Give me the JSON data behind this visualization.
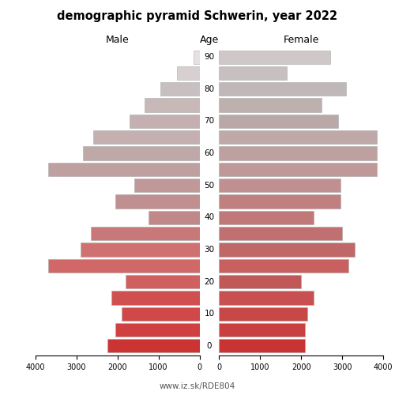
{
  "title": "demographic pyramid Schwerin, year 2022",
  "label_male": "Male",
  "label_female": "Female",
  "label_age": "Age",
  "watermark": "www.iz.sk/RDE804",
  "bg_color": "#ffffff",
  "xlim": 4000,
  "age_groups": [
    0,
    5,
    10,
    15,
    20,
    25,
    30,
    35,
    40,
    45,
    50,
    55,
    60,
    65,
    70,
    75,
    80,
    85,
    90
  ],
  "male_vals": [
    2250,
    2050,
    1900,
    2150,
    1800,
    3700,
    2900,
    2650,
    1250,
    2050,
    1600,
    3700,
    2850,
    2600,
    1700,
    1350,
    950,
    550,
    150
  ],
  "female_vals": [
    2100,
    2100,
    2150,
    2300,
    2000,
    3150,
    3300,
    3000,
    2300,
    2950,
    2950,
    3850,
    3850,
    3850,
    2900,
    2500,
    3100,
    1650,
    2700
  ],
  "male_colors": [
    "#cc3333",
    "#d04040",
    "#d04848",
    "#d05050",
    "#d06060",
    "#d06868",
    "#d07070",
    "#c87878",
    "#c08888",
    "#c09090",
    "#c09898",
    "#bfa0a0",
    "#bfa8a8",
    "#c4b0b0",
    "#c4b0b0",
    "#c8b8b8",
    "#c8c0c0",
    "#d8d0d0",
    "#e8e0e0"
  ],
  "female_colors": [
    "#c83333",
    "#c84040",
    "#c84848",
    "#c85050",
    "#c05858",
    "#c86060",
    "#c06868",
    "#c07070",
    "#c07878",
    "#c08080",
    "#c09090",
    "#bf9898",
    "#bfa0a0",
    "#bfa8a8",
    "#baa8a8",
    "#bfb0b0",
    "#c0b8b8",
    "#c8c0c0",
    "#d0c8c8"
  ]
}
